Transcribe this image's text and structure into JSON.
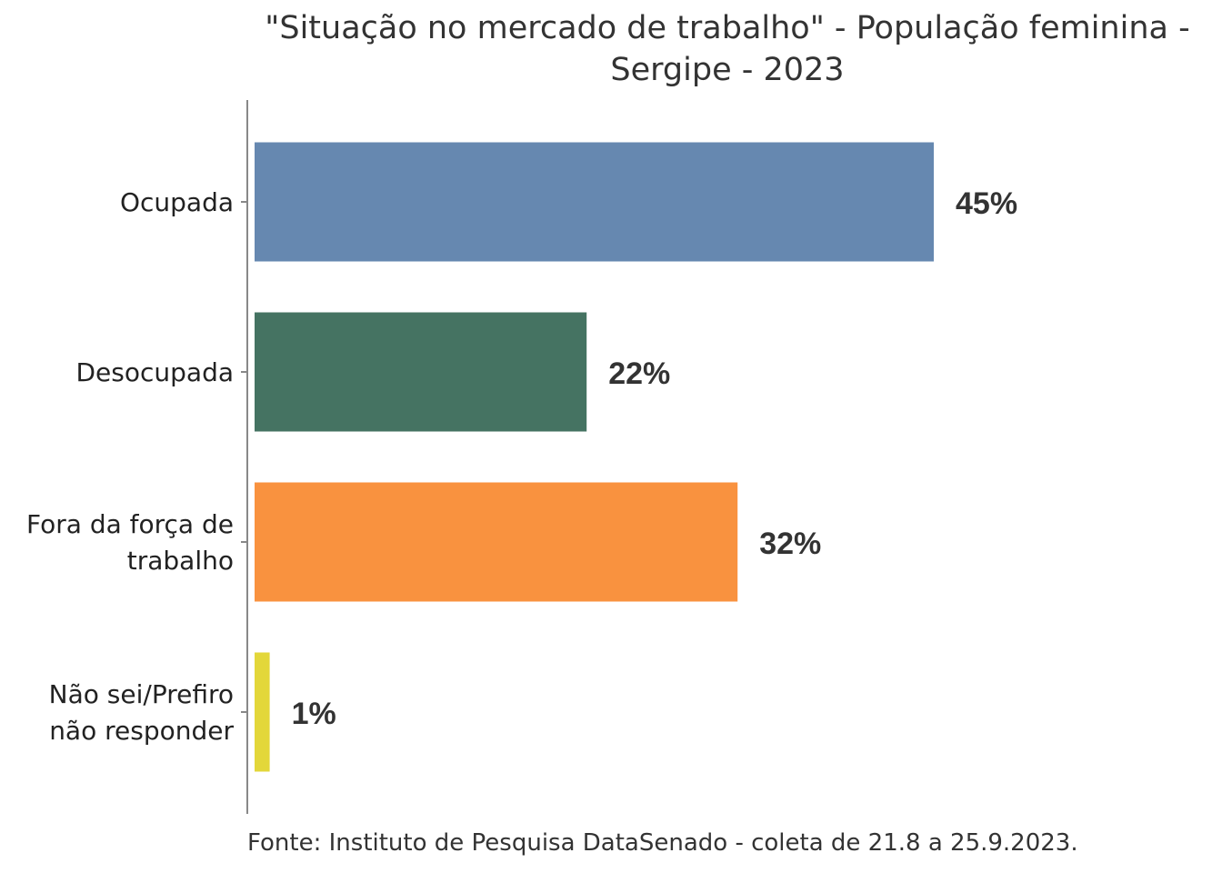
{
  "chart_data": {
    "type": "bar",
    "orientation": "horizontal",
    "title_lines": [
      "\"Situação no mercado de trabalho\" - População feminina -",
      "Sergipe - 2023"
    ],
    "categories": [
      [
        "Ocupada"
      ],
      [
        "Desocupada"
      ],
      [
        "Fora da força de",
        "trabalho"
      ],
      [
        "Não sei/Prefiro",
        "não responder"
      ]
    ],
    "values": [
      45,
      22,
      32,
      1
    ],
    "value_labels": [
      "45%",
      "22%",
      "32%",
      "1%"
    ],
    "colors": [
      "#6688b0",
      "#457362",
      "#f9923f",
      "#e3d73a"
    ],
    "xlim": [
      0,
      60
    ],
    "grid": false,
    "caption": "Fonte: Instituto de Pesquisa DataSenado - coleta de 21.8 a 25.9.2023."
  }
}
